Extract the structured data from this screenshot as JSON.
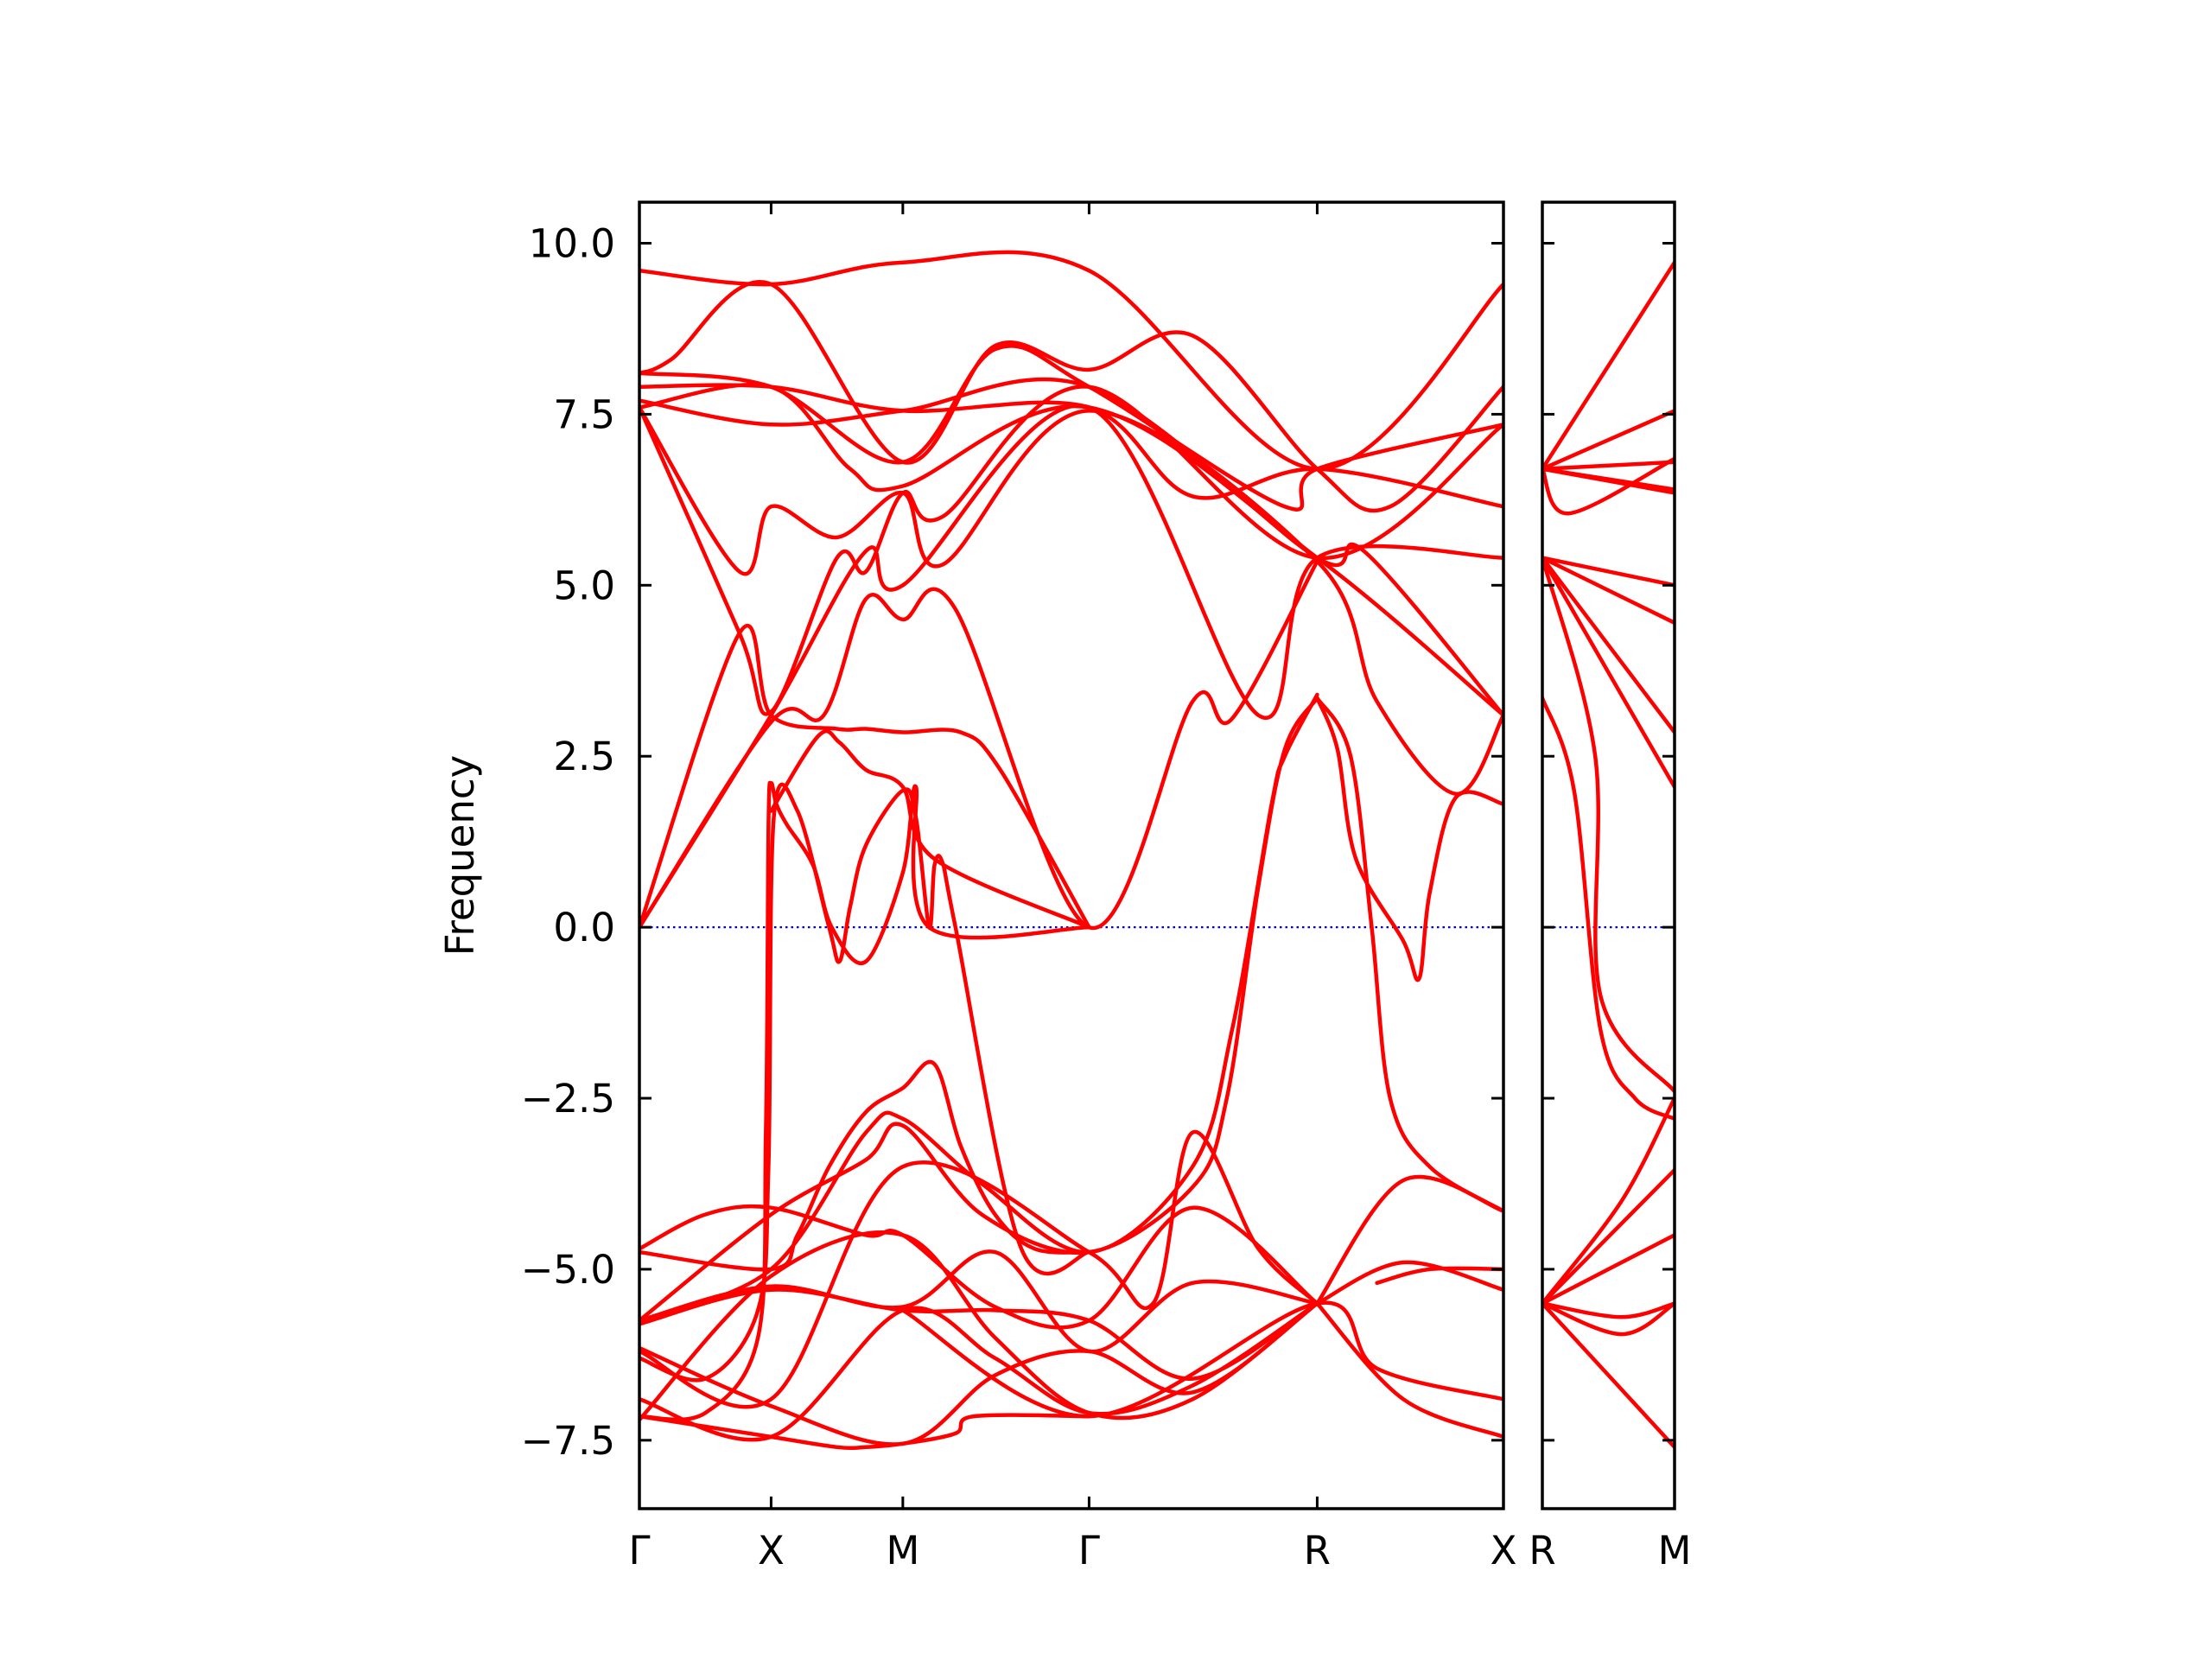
{
  "chart_data": {
    "type": "line",
    "title": "",
    "ylabel": "Frequency",
    "xlabel": "",
    "ylim": [
      -8.5,
      10.6
    ],
    "yticks": [
      10.0,
      7.5,
      5.0,
      2.5,
      0.0,
      -2.5,
      -5.0,
      -7.5
    ],
    "ytick_labels": [
      "10.0",
      "7.5",
      "5.0",
      "2.5",
      "0.0",
      "−2.5",
      "−5.0",
      "−7.5"
    ],
    "grid": false,
    "legend": "none",
    "zero_line": {
      "y": 0.0,
      "color": "#0000cc",
      "style": "dotted"
    },
    "band_color": "#ff0000",
    "panels": [
      {
        "name": "panel-main",
        "points": [
          "Γ",
          "X",
          "M",
          "Γ",
          "R",
          "X"
        ],
        "point_x": [
          0.0,
          0.5,
          1.0,
          1.7071,
          2.5731,
          3.2802
        ],
        "bands": [
          {
            "x": [
              0.0,
              0.5,
              1.0,
              1.7071,
              2.5731,
              3.2802
            ],
            "y": [
              9.6,
              9.4,
              9.72,
              9.6,
              6.7,
              9.4
            ]
          },
          {
            "x": [
              0.0,
              0.12,
              0.5,
              1.0,
              1.35,
              1.7071,
              2.1,
              2.5731,
              2.85,
              3.2802
            ],
            "y": [
              8.1,
              8.3,
              9.4,
              6.8,
              8.5,
              8.15,
              8.65,
              6.7,
              6.15,
              7.9
            ]
          },
          {
            "x": [
              0.0,
              0.5,
              1.0,
              1.35,
              1.7071,
              2.45,
              2.5731,
              3.2802
            ],
            "y": [
              8.1,
              7.9,
              6.8,
              8.45,
              7.9,
              6.15,
              6.7,
              7.35
            ]
          },
          {
            "x": [
              0.0,
              0.5,
              1.0,
              1.7071,
              2.1,
              2.5731,
              3.2802
            ],
            "y": [
              7.9,
              7.9,
              7.55,
              7.6,
              6.3,
              6.7,
              6.15
            ]
          },
          {
            "x": [
              0.0,
              0.5,
              1.0,
              1.7071,
              2.5731,
              2.75,
              3.2802
            ],
            "y": [
              7.7,
              7.35,
              7.55,
              7.9,
              5.4,
              5.5,
              3.1
            ]
          },
          {
            "x": [
              0.0,
              0.5,
              0.8,
              1.0,
              1.7071,
              2.5731,
              3.2802
            ],
            "y": [
              7.6,
              7.9,
              6.7,
              6.45,
              7.6,
              5.4,
              3.1
            ]
          },
          {
            "x": [
              0.0,
              0.38,
              0.5,
              0.75,
              1.0,
              1.15,
              1.7071,
              2.5731,
              2.8,
              3.1,
              3.2802
            ],
            "y": [
              7.6,
              5.2,
              6.15,
              5.7,
              6.35,
              5.3,
              7.55,
              5.35,
              3.3,
              1.95,
              3.1
            ]
          },
          {
            "x": [
              0.0,
              0.38,
              0.5,
              0.75,
              0.86,
              1.0,
              1.15,
              1.7071,
              2.5731,
              3.2802
            ],
            "y": [
              7.6,
              4.3,
              3.15,
              5.4,
              5.2,
              6.35,
              6.0,
              7.9,
              5.4,
              7.35
            ]
          },
          {
            "x": [
              0.0,
              0.5,
              0.86,
              1.0,
              1.7071,
              2.35,
              2.5731,
              3.2802
            ],
            "y": [
              0.0,
              3.1,
              5.5,
              5.0,
              7.6,
              3.1,
              5.4,
              5.4
            ]
          },
          {
            "x": [
              0.0,
              0.5,
              0.7,
              0.86,
              1.0,
              1.2,
              1.7071,
              2.1,
              2.25,
              2.5731
            ],
            "y": [
              0.0,
              3.0,
              3.1,
              4.8,
              4.5,
              4.65,
              0.0,
              3.3,
              3.05,
              5.35
            ]
          },
          {
            "x": [
              0.0,
              0.38,
              0.5,
              0.75,
              0.86,
              1.0,
              1.22,
              1.37,
              1.7071
            ],
            "y": [
              0.0,
              4.3,
              3.1,
              2.9,
              2.9,
              2.85,
              2.85,
              2.3,
              0.0
            ]
          },
          {
            "x": [
              0.0,
              0.25,
              0.5,
              0.75,
              0.86,
              1.0,
              1.2,
              1.27,
              1.7071
            ],
            "y": [
              -7.15,
              -7.3,
              -7.45,
              -7.6,
              -7.6,
              -7.55,
              -7.4,
              -7.15,
              -7.15
            ]
          },
          {
            "x": [
              0.5,
              0.68,
              0.76,
              0.86,
              1.0,
              1.12,
              1.7071
            ],
            "y": [
              1.7,
              2.8,
              2.7,
              2.3,
              2.05,
              1.0,
              0.0
            ]
          }
        ],
        "sketch_bands": [
          {
            "x": [
              0.0,
              0.25,
              0.45,
              0.48,
              0.49,
              0.5,
              0.52,
              0.56,
              0.66,
              0.73,
              0.86,
              1.0,
              1.05,
              1.1,
              1.7071
            ],
            "y": [
              -7.15,
              -7.1,
              -6.0,
              -3.0,
              1.5,
              2.1,
              1.8,
              1.5,
              0.9,
              0.0,
              -0.5,
              0.8,
              2.05,
              0.0,
              0.0
            ]
          },
          {
            "x": [
              0.0,
              0.25,
              0.45,
              0.49,
              0.51,
              0.6,
              0.72,
              0.76,
              0.8,
              0.86,
              1.0,
              1.05,
              1.1,
              1.12,
              1.15,
              1.2,
              1.45,
              1.7071
            ],
            "y": [
              -6.3,
              -6.6,
              -5.6,
              -3.5,
              1.6,
              1.7,
              0.0,
              -0.5,
              0.3,
              1.2,
              2.0,
              1.6,
              0.0,
              0.9,
              0.95,
              0.0,
              -4.7,
              -4.75
            ]
          },
          {
            "x": [
              0.0,
              0.5,
              0.6,
              0.72,
              0.86,
              1.0,
              1.12,
              1.22,
              1.35,
              1.5,
              1.7071
            ],
            "y": [
              -4.75,
              -5.0,
              -4.5,
              -3.5,
              -2.7,
              -2.35,
              -2.0,
              -3.2,
              -4.2,
              -4.7,
              -4.75
            ]
          },
          {
            "x": [
              0.0,
              0.5,
              0.86,
              1.0,
              1.3,
              1.7071,
              2.1,
              2.25,
              2.4,
              2.45,
              2.5731
            ],
            "y": [
              -5.75,
              -5.0,
              -3.0,
              -2.8,
              -3.75,
              -4.75,
              -3.5,
              -1.5,
              1.8,
              2.5,
              3.4
            ]
          },
          {
            "x": [
              0.0,
              0.5,
              0.86,
              1.0,
              1.3,
              1.7071,
              2.1,
              2.23,
              2.35,
              2.45,
              2.5731
            ],
            "y": [
              -5.75,
              -4.2,
              -3.4,
              -2.9,
              -4.2,
              -4.75,
              -3.8,
              -2.5,
              0.6,
              2.6,
              3.35
            ]
          },
          {
            "x": [
              0.0,
              0.5,
              1.0,
              1.7071,
              1.95,
              2.1,
              2.35,
              2.5731
            ],
            "y": [
              -6.2,
              -6.9,
              -3.5,
              -4.75,
              -5.5,
              -3.0,
              -4.7,
              -5.5
            ]
          },
          {
            "x": [
              0.0,
              0.25,
              0.5,
              0.86,
              1.0,
              1.35,
              1.7071,
              2.1,
              2.5731
            ],
            "y": [
              -4.7,
              -4.2,
              -4.1,
              -4.5,
              -4.5,
              -5.55,
              -5.75,
              -4.1,
              -5.5
            ]
          },
          {
            "x": [
              0.0,
              0.5,
              1.0,
              1.35,
              1.7071,
              2.1,
              2.5731
            ],
            "y": [
              -5.75,
              -5.25,
              -5.55,
              -4.75,
              -6.2,
              -5.2,
              -5.5
            ]
          },
          {
            "x": [
              0.0,
              0.5,
              1.0,
              1.35,
              1.7071,
              2.1,
              2.5731
            ],
            "y": [
              -5.8,
              -5.3,
              -5.6,
              -5.6,
              -5.75,
              -6.6,
              -5.5
            ]
          },
          {
            "x": [
              0.0,
              0.5,
              1.0,
              1.35,
              1.7071,
              2.1,
              2.5731
            ],
            "y": [
              -6.15,
              -7.0,
              -7.55,
              -6.55,
              -6.2,
              -6.8,
              -5.5
            ]
          },
          {
            "x": [
              0.0,
              0.5,
              1.0,
              1.35,
              1.7071,
              2.1,
              2.5731
            ],
            "y": [
              -6.9,
              -7.45,
              -5.6,
              -6.3,
              -7.1,
              -6.7,
              -5.5
            ]
          },
          {
            "x": [
              0.0,
              0.5,
              1.0,
              1.35,
              1.7071,
              2.1,
              2.5731
            ],
            "y": [
              -7.2,
              -5.1,
              -4.5,
              -6.0,
              -7.1,
              -6.9,
              -5.5
            ]
          },
          {
            "x": [
              1.0,
              1.7071,
              2.5731,
              2.8,
              3.2802
            ],
            "y": [
              -5.6,
              -7.15,
              -5.5,
              -6.45,
              -6.9
            ]
          },
          {
            "x": [
              2.5731,
              2.9,
              3.2802
            ],
            "y": [
              -5.5,
              -3.7,
              -4.15
            ]
          },
          {
            "x": [
              2.5731,
              2.9,
              3.2802
            ],
            "y": [
              -5.5,
              -4.9,
              -5.3
            ]
          },
          {
            "x": [
              2.5731,
              2.9,
              3.2802
            ],
            "y": [
              -5.5,
              -6.9,
              -7.45
            ]
          },
          {
            "x": [
              2.5731,
              2.7,
              2.78,
              2.85,
              3.0,
              3.2802
            ],
            "y": [
              3.35,
              2.5,
              0.0,
              -2.5,
              -3.5,
              -4.15
            ]
          },
          {
            "x": [
              2.5731,
              2.65,
              2.72,
              2.9,
              2.96,
              3.0,
              3.1,
              3.2802
            ],
            "y": [
              3.35,
              2.6,
              1.0,
              -0.2,
              -0.75,
              0.5,
              1.9,
              1.8
            ]
          },
          {
            "x": [
              2.8,
              3.0,
              3.2802
            ],
            "y": [
              -5.2,
              -5.0,
              -5.0
            ]
          }
        ]
      },
      {
        "name": "panel-rm",
        "points": [
          "R",
          "M"
        ],
        "point_x": [
          0.0,
          0.5
        ],
        "bands": [
          {
            "x": [
              0.0,
              0.5
            ],
            "y": [
              6.7,
              9.72
            ]
          },
          {
            "x": [
              0.0,
              0.5
            ],
            "y": [
              6.7,
              7.55
            ]
          },
          {
            "x": [
              0.0,
              0.1,
              0.5
            ],
            "y": [
              6.7,
              6.05,
              6.85
            ]
          },
          {
            "x": [
              0.0,
              0.5
            ],
            "y": [
              6.7,
              6.8
            ]
          },
          {
            "x": [
              0.0,
              0.5
            ],
            "y": [
              6.7,
              6.35
            ]
          },
          {
            "x": [
              0.0,
              0.5
            ],
            "y": [
              6.7,
              6.4
            ]
          },
          {
            "x": [
              0.0,
              0.5
            ],
            "y": [
              5.4,
              5.0
            ]
          },
          {
            "x": [
              0.0,
              0.5
            ],
            "y": [
              5.4,
              4.45
            ]
          },
          {
            "x": [
              0.0,
              0.5
            ],
            "y": [
              5.4,
              2.85
            ]
          },
          {
            "x": [
              0.0,
              0.5
            ],
            "y": [
              5.4,
              2.05
            ]
          },
          {
            "x": [
              0.0,
              0.2,
              0.22,
              0.5
            ],
            "y": [
              5.4,
              2.5,
              -1.0,
              -2.4
            ]
          },
          {
            "x": [
              0.0,
              0.12,
              0.22,
              0.35,
              0.5
            ],
            "y": [
              3.35,
              2.0,
              -1.5,
              -2.5,
              -2.8
            ]
          },
          {
            "x": [
              0.0,
              0.5
            ],
            "y": [
              -5.5,
              -3.55
            ]
          },
          {
            "x": [
              0.0,
              0.5
            ],
            "y": [
              -5.5,
              -4.5
            ]
          },
          {
            "x": [
              0.0,
              0.3,
              0.5
            ],
            "y": [
              -5.5,
              -5.95,
              -5.5
            ]
          },
          {
            "x": [
              0.0,
              0.5
            ],
            "y": [
              -5.5,
              -7.6
            ]
          },
          {
            "x": [
              0.0,
              0.3,
              0.5
            ],
            "y": [
              -5.5,
              -5.7,
              -5.5
            ]
          },
          {
            "x": [
              0.0,
              0.3,
              0.5
            ],
            "y": [
              -5.5,
              -4.0,
              -2.5
            ]
          }
        ]
      }
    ]
  }
}
